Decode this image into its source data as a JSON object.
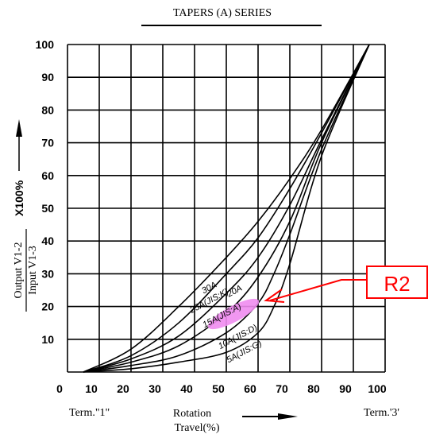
{
  "chart_data": {
    "type": "line",
    "title": "TAPERS (A) SERIES",
    "xlabel_parts": [
      "Rotation",
      "Travel(%)"
    ],
    "ylabel_top": "Output V1-2",
    "ylabel_bottom": "Input V1-3",
    "ylabel_factor": "X100%",
    "x_ticks": [
      "0",
      "10",
      "20",
      "30",
      "40",
      "50",
      "60",
      "70",
      "80",
      "90",
      "100"
    ],
    "y_ticks": [
      "10",
      "20",
      "30",
      "40",
      "50",
      "60",
      "70",
      "80",
      "90",
      "100"
    ],
    "xlim": [
      0,
      100
    ],
    "ylim": [
      0,
      100
    ],
    "grid": true,
    "term_left": "Term.\"1\"",
    "term_right": "Term.'3'",
    "callout_label": "R2",
    "highlight_color": "#f08cf0",
    "callout_color": "#ff0000",
    "series": [
      {
        "name": "30A",
        "x": [
          5,
          20,
          35,
          50,
          60,
          70,
          80,
          95
        ],
        "y": [
          0,
          7,
          20,
          35,
          46,
          59,
          74,
          100
        ]
      },
      {
        "name": "25A(JIS:K)",
        "x": [
          5,
          20,
          35,
          50,
          60,
          70,
          80,
          95
        ],
        "y": [
          0,
          5,
          15,
          30,
          41,
          56,
          73,
          100
        ]
      },
      {
        "name": "20A",
        "x": [
          5,
          20,
          35,
          50,
          60,
          70,
          80,
          95
        ],
        "y": [
          0,
          4,
          11,
          24,
          35,
          51,
          71,
          100
        ]
      },
      {
        "name": "15A(JIS:A)",
        "x": [
          5,
          20,
          35,
          50,
          60,
          70,
          80,
          95
        ],
        "y": [
          0,
          3,
          8,
          18,
          29,
          46,
          70,
          100
        ]
      },
      {
        "name": "10A(JIS:D)",
        "x": [
          5,
          20,
          35,
          50,
          60,
          65,
          70,
          80,
          95
        ],
        "y": [
          0,
          2,
          5,
          12,
          21,
          30,
          42,
          68,
          100
        ]
      },
      {
        "name": "5A(JIS:G)",
        "x": [
          5,
          20,
          35,
          50,
          60,
          65,
          70,
          80,
          95
        ],
        "y": [
          0,
          1,
          3,
          6,
          12,
          20,
          33,
          66,
          100
        ]
      }
    ]
  }
}
